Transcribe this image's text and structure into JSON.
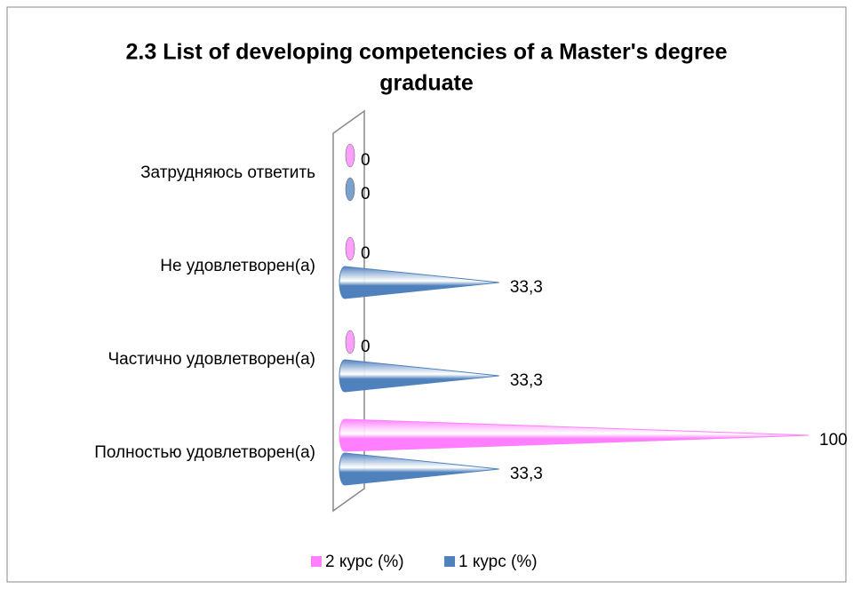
{
  "chart_data": {
    "type": "cone-bar",
    "title": [
      "2.3 List of developing competencies of a Master's degree",
      "graduate"
    ],
    "categories": [
      "Затрудняюсь ответить",
      "Не удовлетворен(а)",
      "Частично удовлетворен(а)",
      "Полностью удовлетворен(а)"
    ],
    "series": [
      {
        "name": "2 курс (%)",
        "color": "#ff7fff",
        "values": [
          0,
          0,
          0,
          100
        ]
      },
      {
        "name": "1 курс (%)",
        "color": "#4f81bd",
        "values": [
          0,
          33.3,
          33.3,
          33.3
        ],
        "value_labels": [
          "0",
          "33,3",
          "33,3",
          "33,3"
        ]
      }
    ],
    "xlim": [
      0,
      100
    ],
    "legend": "bottom"
  }
}
